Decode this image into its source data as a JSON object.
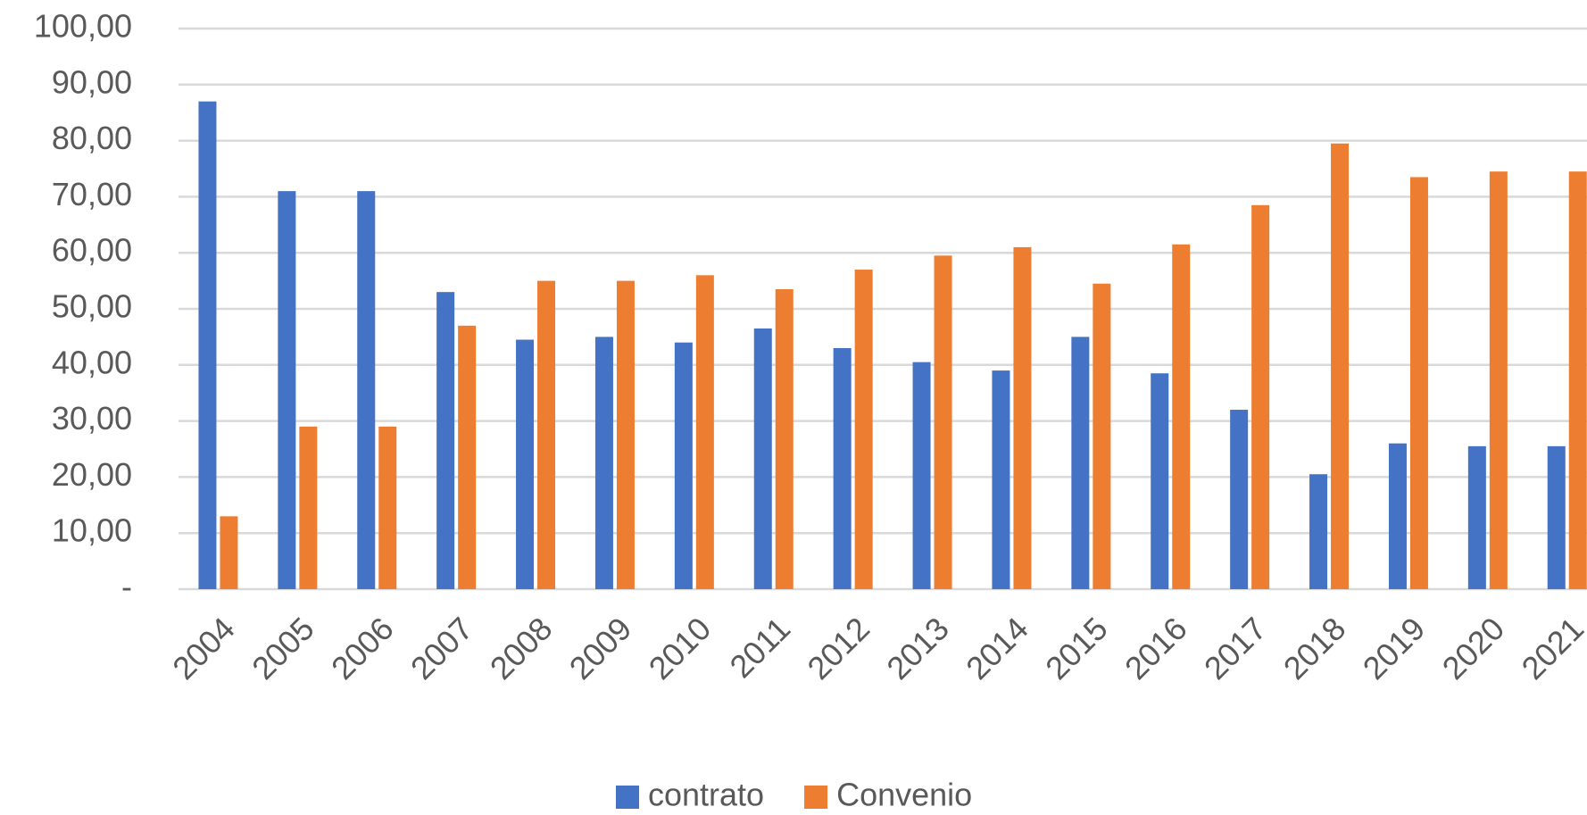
{
  "chart_data": {
    "type": "bar",
    "categories": [
      "2004",
      "2005",
      "2006",
      "2007",
      "2008",
      "2009",
      "2010",
      "2011",
      "2012",
      "2013",
      "2014",
      "2015",
      "2016",
      "2017",
      "2018",
      "2019",
      "2020",
      "2021"
    ],
    "series": [
      {
        "name": "contrato",
        "color": "#4472c4",
        "values": [
          87,
          71,
          71,
          53,
          44.5,
          45,
          44,
          46.5,
          43,
          40.5,
          39,
          45,
          38.5,
          32,
          20.5,
          26,
          25.5,
          25.5
        ]
      },
      {
        "name": "Convenio",
        "color": "#ed7d31",
        "values": [
          13,
          29,
          29,
          47,
          55,
          55,
          56,
          53.5,
          57,
          59.5,
          61,
          54.5,
          61.5,
          68.5,
          79.5,
          73.5,
          74.5,
          74.5
        ]
      }
    ],
    "ylim": [
      0,
      100
    ],
    "yticks": [
      {
        "value": 0,
        "label": "-"
      },
      {
        "value": 10,
        "label": "10,00"
      },
      {
        "value": 20,
        "label": "20,00"
      },
      {
        "value": 30,
        "label": "30,00"
      },
      {
        "value": 40,
        "label": "40,00"
      },
      {
        "value": 50,
        "label": "50,00"
      },
      {
        "value": 60,
        "label": "60,00"
      },
      {
        "value": 70,
        "label": "70,00"
      },
      {
        "value": 80,
        "label": "80,00"
      },
      {
        "value": 90,
        "label": "90,00"
      },
      {
        "value": 100,
        "label": "100,00"
      }
    ],
    "grid": true,
    "legend": "bottom"
  }
}
